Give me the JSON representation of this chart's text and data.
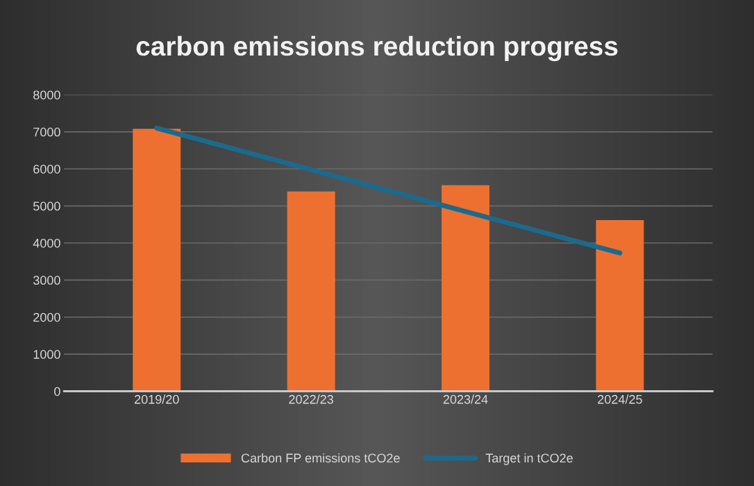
{
  "chart_data": {
    "type": "bar",
    "title": "carbon emissions reduction progress",
    "categories": [
      "2019/20",
      "2022/23",
      "2023/24",
      "2024/25"
    ],
    "series": [
      {
        "name": "Carbon FP emissions tCO2e",
        "color": "#ed7031",
        "values": [
          7080,
          5390,
          5560,
          4620
        ]
      },
      {
        "name": "Target in tCO2e",
        "type": "line",
        "color": "#1b6a8e",
        "values": [
          7100,
          5980,
          4850,
          3730
        ]
      }
    ],
    "ylim": [
      0,
      8000
    ],
    "yticks": [
      0,
      1000,
      2000,
      3000,
      4000,
      5000,
      6000,
      7000,
      8000
    ],
    "grid": "y",
    "legend": "bottom",
    "marker": "none",
    "line_style": "solid"
  }
}
